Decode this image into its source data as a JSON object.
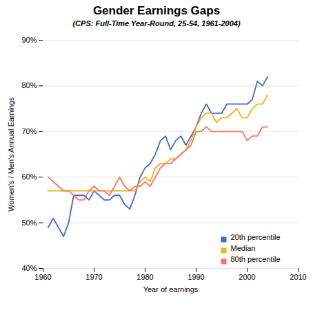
{
  "chart_data": {
    "type": "line",
    "title": "Gender Earnings Gaps",
    "subtitle": "(CPS: Full-Time Year-Round, 25-54, 1961-2004)",
    "xlabel": "Year of earnings",
    "ylabel": "Women's / Men's Annual Earnings",
    "x": [
      1961,
      1962,
      1963,
      1964,
      1965,
      1966,
      1967,
      1968,
      1969,
      1970,
      1971,
      1972,
      1973,
      1974,
      1975,
      1976,
      1977,
      1978,
      1979,
      1980,
      1981,
      1982,
      1983,
      1984,
      1985,
      1986,
      1987,
      1988,
      1989,
      1990,
      1991,
      1992,
      1993,
      1994,
      1995,
      1996,
      1997,
      1998,
      1999,
      2000,
      2001,
      2002,
      2003,
      2004
    ],
    "series": [
      {
        "name": "20th percentile",
        "values": [
          0.49,
          0.51,
          0.49,
          0.47,
          0.5,
          0.56,
          0.56,
          0.56,
          0.55,
          0.57,
          0.56,
          0.55,
          0.55,
          0.56,
          0.56,
          0.54,
          0.53,
          0.56,
          0.6,
          0.62,
          0.63,
          0.65,
          0.68,
          0.69,
          0.66,
          0.68,
          0.69,
          0.67,
          0.69,
          0.71,
          0.74,
          0.76,
          0.74,
          0.74,
          0.74,
          0.76,
          0.76,
          0.76,
          0.76,
          0.76,
          0.77,
          0.81,
          0.8,
          0.82
        ]
      },
      {
        "name": "Median",
        "values": [
          0.57,
          0.57,
          0.57,
          0.57,
          0.57,
          0.57,
          0.57,
          0.57,
          0.57,
          0.57,
          0.57,
          0.57,
          0.57,
          0.57,
          0.57,
          0.57,
          0.57,
          0.57,
          0.59,
          0.6,
          0.59,
          0.62,
          0.63,
          0.63,
          0.64,
          0.64,
          0.65,
          0.66,
          0.68,
          0.71,
          0.73,
          0.74,
          0.74,
          0.72,
          0.73,
          0.73,
          0.74,
          0.75,
          0.73,
          0.73,
          0.75,
          0.76,
          0.76,
          0.78
        ]
      },
      {
        "name": "80th percentile",
        "values": [
          0.6,
          0.59,
          0.58,
          0.57,
          0.57,
          0.56,
          0.55,
          0.55,
          0.57,
          0.58,
          0.57,
          0.57,
          0.56,
          0.58,
          0.6,
          0.58,
          0.57,
          0.58,
          0.58,
          0.59,
          0.58,
          0.6,
          0.62,
          0.63,
          0.63,
          0.64,
          0.65,
          0.66,
          0.67,
          0.7,
          0.7,
          0.71,
          0.7,
          0.7,
          0.7,
          0.7,
          0.7,
          0.7,
          0.7,
          0.68,
          0.69,
          0.69,
          0.71,
          0.71
        ]
      }
    ],
    "xlim": [
      1960,
      2010
    ],
    "ylim": [
      0.4,
      0.9
    ],
    "xticks": [
      1960,
      1970,
      1980,
      1990,
      2000,
      2010
    ],
    "yticks": [
      {
        "value": 0.4,
        "label": "40%"
      },
      {
        "value": 0.5,
        "label": "50%"
      },
      {
        "value": 0.6,
        "label": "60%"
      },
      {
        "value": 0.7,
        "label": "70%"
      },
      {
        "value": 0.8,
        "label": "80%"
      },
      {
        "value": 0.9,
        "label": "90%"
      }
    ],
    "grid": true,
    "legend": "lower right"
  }
}
